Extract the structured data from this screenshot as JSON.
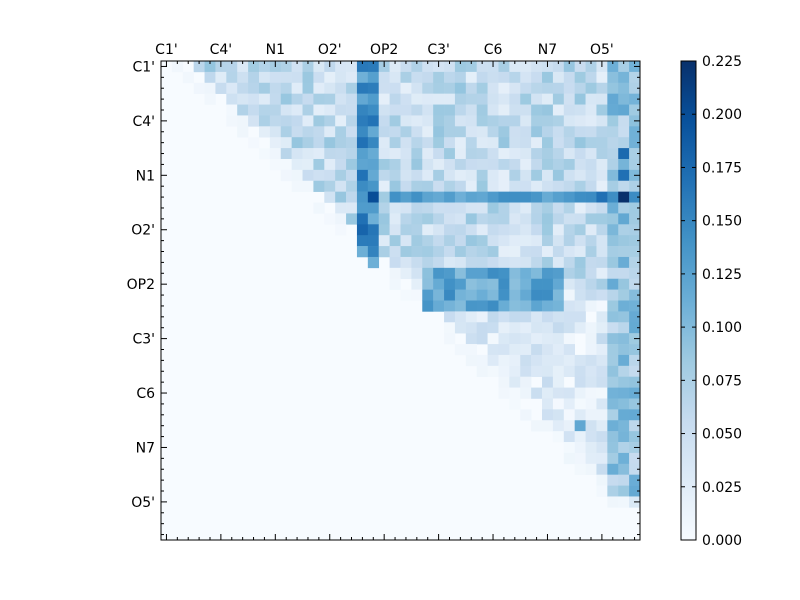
{
  "chart_data": {
    "type": "heatmap",
    "title": "",
    "xlabel": "",
    "ylabel": "",
    "n": 44,
    "x_tick_labels": [
      "C1'",
      "C4'",
      "N1",
      "O2'",
      "OP2",
      "C3'",
      "C6",
      "N7",
      "O5'"
    ],
    "y_tick_labels": [
      "C1'",
      "C4'",
      "N1",
      "O2'",
      "OP2",
      "C3'",
      "C6",
      "N7",
      "O5'"
    ],
    "tick_indices": [
      0,
      5,
      10,
      15,
      20,
      25,
      30,
      35,
      40
    ],
    "colorbar": {
      "min": 0.0,
      "max": 0.225,
      "ticks": [
        "0.000",
        "0.025",
        "0.050",
        "0.075",
        "0.100",
        "0.125",
        "0.150",
        "0.175",
        "0.200",
        "0.225"
      ],
      "colors": [
        "#f7fbff",
        "#deebf7",
        "#c6dbef",
        "#9ecae1",
        "#6baed6",
        "#4292c6",
        "#2171b5",
        "#08519c",
        "#08306b"
      ]
    },
    "notable_cells": [
      {
        "row": 12,
        "col": 42,
        "value": 0.225
      },
      {
        "row": 12,
        "col": 19,
        "value": 0.2
      },
      {
        "row": 12,
        "col": 40,
        "value": 0.17
      },
      {
        "row": 8,
        "col": 42,
        "value": 0.175
      },
      {
        "row": 10,
        "col": 42,
        "value": 0.17
      },
      {
        "row": 0,
        "col": 19,
        "value": 0.16
      },
      {
        "row": 14,
        "col": 18,
        "value": 0.17
      },
      {
        "row": 15,
        "col": 18,
        "value": 0.18
      },
      {
        "row": 16,
        "col": 19,
        "value": 0.16
      },
      {
        "row": 19,
        "col": 30,
        "value": 0.145
      },
      {
        "row": 20,
        "col": 34,
        "value": 0.14
      },
      {
        "row": 20,
        "col": 35,
        "value": 0.14
      },
      {
        "row": 33,
        "col": 38,
        "value": 0.12
      }
    ]
  }
}
